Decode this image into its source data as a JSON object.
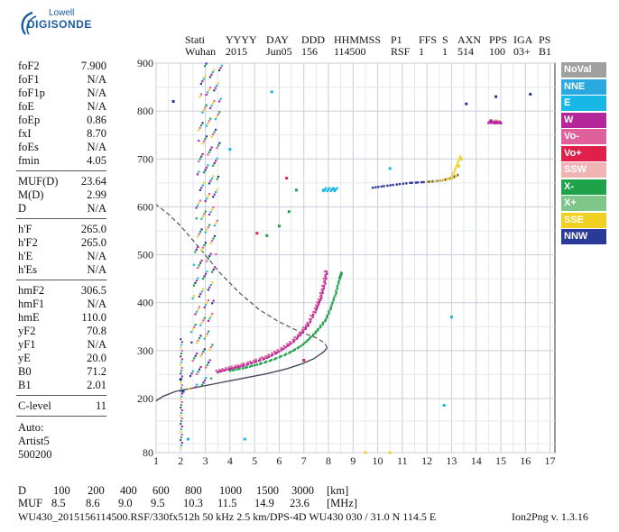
{
  "logo": {
    "line1": "Lowell",
    "line2": "DIGISONDE"
  },
  "header": {
    "columns": [
      {
        "top": "Stati",
        "bottom": "Wuhan"
      },
      {
        "top": "YYYY",
        "bottom": "2015"
      },
      {
        "top": "DAY",
        "bottom": "Jun05"
      },
      {
        "top": "DDD",
        "bottom": "156"
      },
      {
        "top": "HHMMSS",
        "bottom": "114500"
      },
      {
        "top": "P1",
        "bottom": "RSF"
      },
      {
        "top": "FFS",
        "bottom": "1"
      },
      {
        "top": "S",
        "bottom": "1"
      },
      {
        "top": "AXN",
        "bottom": "514"
      },
      {
        "top": "PPS",
        "bottom": "100"
      },
      {
        "top": "IGA",
        "bottom": "03+"
      },
      {
        "top": "PS",
        "bottom": "B1"
      }
    ]
  },
  "params": {
    "group1": [
      {
        "name": "foF2",
        "value": "7.900"
      },
      {
        "name": "foF1",
        "value": "N/A"
      },
      {
        "name": "foF1p",
        "value": "N/A"
      },
      {
        "name": "foE",
        "value": "N/A"
      },
      {
        "name": "foEp",
        "value": "0.86"
      },
      {
        "name": "fxI",
        "value": "8.70"
      },
      {
        "name": "foEs",
        "value": "N/A"
      },
      {
        "name": "fmin",
        "value": "4.05"
      }
    ],
    "group2": [
      {
        "name": "MUF(D)",
        "value": "23.64"
      },
      {
        "name": "M(D)",
        "value": "2.99"
      },
      {
        "name": "D",
        "value": "N/A"
      }
    ],
    "group3": [
      {
        "name": "h'F",
        "value": "265.0"
      },
      {
        "name": "h'F2",
        "value": "265.0"
      },
      {
        "name": "h'E",
        "value": "N/A"
      },
      {
        "name": "h'Es",
        "value": "N/A"
      }
    ],
    "group4": [
      {
        "name": "hmF2",
        "value": "306.5"
      },
      {
        "name": "hmF1",
        "value": "N/A"
      },
      {
        "name": "hmE",
        "value": "110.0"
      },
      {
        "name": "yF2",
        "value": "70.8"
      },
      {
        "name": "yF1",
        "value": "N/A"
      },
      {
        "name": "yE",
        "value": "20.0"
      },
      {
        "name": "B0",
        "value": "71.2"
      },
      {
        "name": "B1",
        "value": "2.01"
      }
    ],
    "group5": [
      {
        "name": "C-level",
        "value": "11"
      }
    ],
    "auto": [
      "Auto:",
      "Artist5",
      "500200"
    ]
  },
  "legend": [
    {
      "label": "NoVal",
      "color": "#a0a0a0"
    },
    {
      "label": "NNE",
      "color": "#29a9e0"
    },
    {
      "label": "E",
      "color": "#19b7e6"
    },
    {
      "label": "W",
      "color": "#b5269a"
    },
    {
      "label": "Vo-",
      "color": "#e0609c"
    },
    {
      "label": "Vo+",
      "color": "#e0204a"
    },
    {
      "label": "SSW",
      "color": "#f0b4b4"
    },
    {
      "label": "X-",
      "color": "#1fa34a"
    },
    {
      "label": "X+",
      "color": "#7fc68a"
    },
    {
      "label": "SSE",
      "color": "#f0d020"
    },
    {
      "label": "NNW",
      "color": "#2a3a98"
    }
  ],
  "footer": {
    "d_label": "D",
    "d_values": [
      "100",
      "200",
      "400",
      "600",
      "800",
      "1000",
      "1500",
      "3000"
    ],
    "d_unit": "[km]",
    "muf_label": "MUF",
    "muf_values": [
      "8.5",
      "8.6",
      "9.0",
      "9.5",
      "10.3",
      "11.5",
      "14.9",
      "23.6"
    ],
    "muf_unit": "[MHz]",
    "info": "WU430_2015156114500.RSF/330fx512h 50 kHz 2.5 km/DPS-4D WU430 030 / 31.0 N 114.5 E",
    "version": "Ion2Png v. 1.3.16"
  },
  "chart_data": {
    "type": "scatter",
    "xlim": [
      1,
      17.2
    ],
    "ylim": [
      80,
      900
    ],
    "x_ticks": [
      1,
      2,
      3,
      4,
      5,
      6,
      7,
      8,
      9,
      10,
      11,
      12,
      13,
      14,
      15,
      16,
      17
    ],
    "y_ticks": [
      80,
      200,
      300,
      400,
      500,
      600,
      700,
      800,
      900
    ],
    "grid": true,
    "legend_position": "right",
    "profile_line": [
      [
        1.0,
        195
      ],
      [
        1.3,
        205
      ],
      [
        1.8,
        215
      ],
      [
        2.5,
        222
      ],
      [
        3.5,
        232
      ],
      [
        4.5,
        242
      ],
      [
        5.5,
        252
      ],
      [
        6.3,
        262
      ],
      [
        6.9,
        272
      ],
      [
        7.4,
        283
      ],
      [
        7.8,
        297
      ],
      [
        7.95,
        306
      ],
      [
        7.85,
        316
      ],
      [
        7.5,
        327
      ],
      [
        6.8,
        340
      ],
      [
        6.0,
        360
      ],
      [
        5.2,
        385
      ],
      [
        4.4,
        420
      ],
      [
        3.6,
        462
      ],
      [
        2.8,
        512
      ],
      [
        2.0,
        560
      ],
      [
        1.5,
        585
      ],
      [
        1.0,
        605
      ]
    ],
    "o_trace": [
      [
        3.5,
        255
      ],
      [
        4.0,
        262
      ],
      [
        4.5,
        268
      ],
      [
        5.0,
        276
      ],
      [
        5.5,
        285
      ],
      [
        6.0,
        298
      ],
      [
        6.5,
        315
      ],
      [
        6.9,
        335
      ],
      [
        7.2,
        355
      ],
      [
        7.5,
        385
      ],
      [
        7.7,
        410
      ],
      [
        7.85,
        440
      ],
      [
        7.95,
        470
      ]
    ],
    "x_trace": [
      [
        4.0,
        258
      ],
      [
        4.6,
        264
      ],
      [
        5.2,
        272
      ],
      [
        5.8,
        282
      ],
      [
        6.4,
        295
      ],
      [
        6.9,
        310
      ],
      [
        7.3,
        328
      ],
      [
        7.6,
        345
      ],
      [
        7.9,
        365
      ],
      [
        8.1,
        390
      ],
      [
        8.3,
        420
      ],
      [
        8.45,
        450
      ],
      [
        8.55,
        465
      ]
    ],
    "e_ws_trace": [
      [
        9.8,
        640
      ],
      [
        10.5,
        645
      ],
      [
        11.3,
        650
      ],
      [
        12.0,
        652
      ],
      [
        12.6,
        655
      ],
      [
        13.0,
        660
      ],
      [
        13.3,
        668
      ]
    ],
    "vertical_spread": [
      [
        2.5,
        300
      ],
      [
        2.6,
        420
      ],
      [
        2.7,
        500
      ],
      [
        2.8,
        580
      ],
      [
        2.9,
        640
      ],
      [
        3.0,
        720
      ],
      [
        3.1,
        800
      ],
      [
        3.2,
        880
      ]
    ],
    "markers": {
      "nnw": [
        [
          1.7,
          820
        ],
        [
          13.6,
          815
        ],
        [
          14.8,
          830
        ],
        [
          16.2,
          835
        ],
        [
          2.0,
          240
        ],
        [
          2.1,
          215
        ]
      ],
      "w": [
        [
          14.6,
          780
        ],
        [
          14.8,
          775
        ],
        [
          15.0,
          775
        ]
      ],
      "sse": [
        [
          13.3,
          685
        ],
        [
          13.4,
          700
        ],
        [
          14.8,
          780
        ],
        [
          10.5,
          80
        ],
        [
          9.5,
          80
        ]
      ],
      "nne": [
        [
          2.3,
          110
        ],
        [
          4.6,
          110
        ],
        [
          7.8,
          635
        ],
        [
          8.2,
          637
        ],
        [
          4.0,
          720
        ],
        [
          5.7,
          840
        ],
        [
          10.5,
          680
        ],
        [
          12.7,
          185
        ],
        [
          13.0,
          370
        ]
      ],
      "x-": [
        [
          6.4,
          590
        ],
        [
          6.7,
          635
        ],
        [
          6.0,
          560
        ],
        [
          5.5,
          540
        ]
      ],
      "vo+": [
        [
          6.3,
          660
        ],
        [
          5.1,
          545
        ],
        [
          7.0,
          280
        ]
      ]
    }
  }
}
